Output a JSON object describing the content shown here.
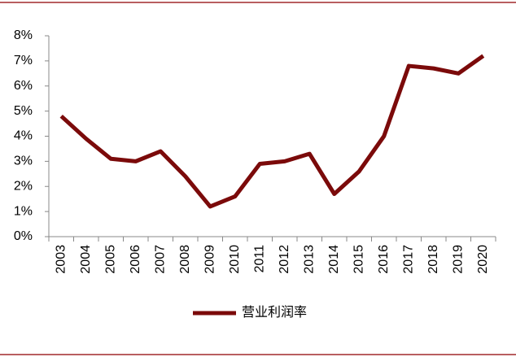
{
  "chart_data": {
    "type": "line",
    "categories": [
      "2003",
      "2004",
      "2005",
      "2006",
      "2007",
      "2008",
      "2009",
      "2010",
      "2011",
      "2012",
      "2013",
      "2014",
      "2015",
      "2016",
      "2017",
      "2018",
      "2019",
      "2020"
    ],
    "series": [
      {
        "name": "营业利润率",
        "color": "#7b0a0a",
        "values": [
          4.8,
          3.9,
          3.1,
          3.0,
          3.4,
          2.4,
          1.2,
          1.6,
          2.9,
          3.0,
          3.3,
          1.7,
          2.6,
          4.0,
          6.8,
          6.7,
          6.5,
          7.2
        ]
      }
    ],
    "ylim": [
      0,
      8
    ],
    "yticks": [
      {
        "value": 0,
        "label": "0%"
      },
      {
        "value": 1,
        "label": "1%"
      },
      {
        "value": 2,
        "label": "2%"
      },
      {
        "value": 3,
        "label": "3%"
      },
      {
        "value": 4,
        "label": "4%"
      },
      {
        "value": 5,
        "label": "5%"
      },
      {
        "value": 6,
        "label": "6%"
      },
      {
        "value": 7,
        "label": "7%"
      },
      {
        "value": 8,
        "label": "8%"
      }
    ],
    "legend": "bottom"
  }
}
